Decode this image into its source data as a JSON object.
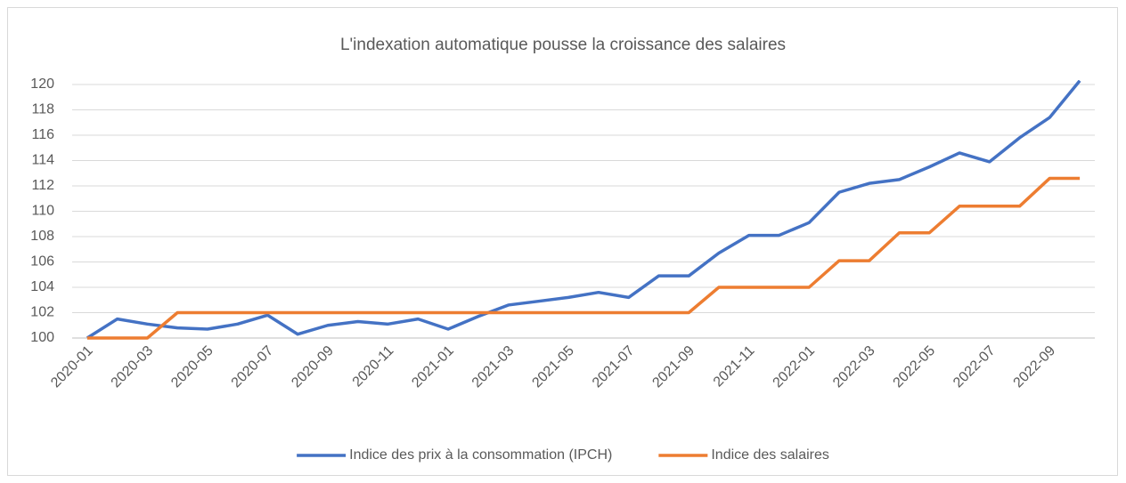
{
  "chart_data": {
    "type": "line",
    "title": "L'indexation automatique pousse la croissance des salaires",
    "categories": [
      "2020-01",
      null,
      "2020-03",
      null,
      "2020-05",
      null,
      "2020-07",
      null,
      "2020-09",
      null,
      "2020-11",
      null,
      "2021-01",
      null,
      "2021-03",
      null,
      "2021-05",
      null,
      "2021-07",
      null,
      "2021-09",
      null,
      "2021-11",
      null,
      "2022-01",
      null,
      "2022-03",
      null,
      "2022-05",
      null,
      "2022-07",
      null,
      "2022-09",
      null
    ],
    "series": [
      {
        "name": "Indice des prix à la consommation (IPCH)",
        "color": "#4472c4",
        "values": [
          100,
          101.5,
          101.1,
          100.8,
          100.7,
          101.1,
          101.8,
          100.3,
          101.0,
          101.3,
          101.1,
          101.5,
          100.7,
          101.7,
          102.6,
          102.9,
          103.2,
          103.6,
          103.2,
          104.9,
          104.9,
          106.7,
          108.1,
          108.1,
          109.1,
          111.5,
          112.2,
          112.5,
          113.5,
          114.6,
          113.9,
          115.8,
          117.4,
          120.3
        ]
      },
      {
        "name": "Indice des salaires",
        "color": "#ed7d31",
        "values": [
          100,
          100,
          100,
          102,
          102,
          102,
          102,
          102,
          102,
          102,
          102,
          102,
          102,
          102,
          102,
          102,
          102,
          102,
          102,
          102,
          102,
          104,
          104,
          104,
          104,
          106.1,
          106.1,
          108.3,
          108.3,
          110.4,
          110.4,
          110.4,
          112.6,
          112.6
        ]
      }
    ],
    "ylim": [
      100,
      120
    ],
    "yticks": [
      100,
      102,
      104,
      106,
      108,
      110,
      112,
      114,
      116,
      118,
      120
    ],
    "grid": true,
    "legend": "bottom"
  }
}
